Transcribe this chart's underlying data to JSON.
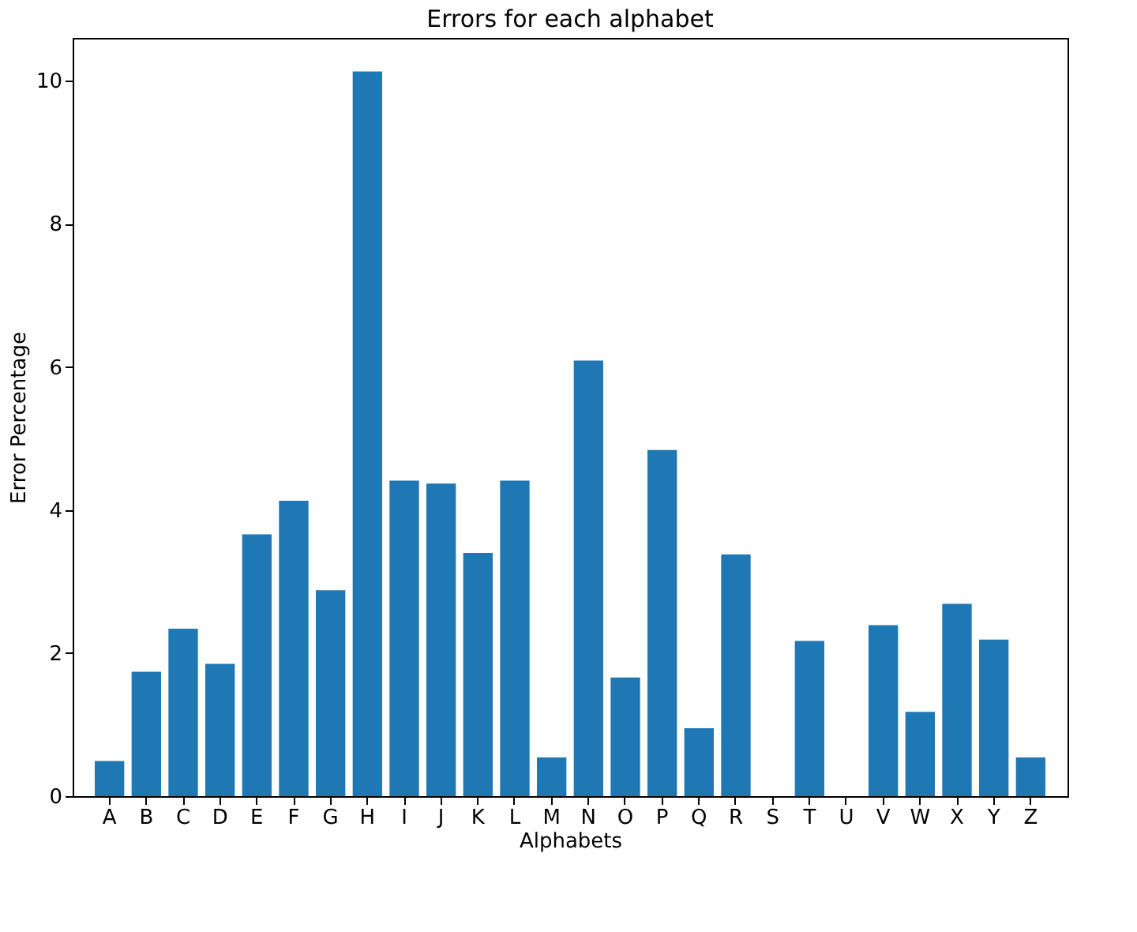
{
  "chart_data": {
    "type": "bar",
    "title": "Errors for each alphabet",
    "xlabel": "Alphabets",
    "ylabel": "Error Percentage",
    "categories": [
      "A",
      "B",
      "C",
      "D",
      "E",
      "F",
      "G",
      "H",
      "I",
      "J",
      "K",
      "L",
      "M",
      "N",
      "O",
      "P",
      "Q",
      "R",
      "S",
      "T",
      "U",
      "V",
      "W",
      "X",
      "Y",
      "Z"
    ],
    "values": [
      0.49,
      1.74,
      2.34,
      1.85,
      3.66,
      4.13,
      2.88,
      10.13,
      4.41,
      4.37,
      3.4,
      4.41,
      0.54,
      6.09,
      1.66,
      4.84,
      0.95,
      3.38,
      0,
      2.17,
      0,
      2.39,
      1.18,
      2.69,
      2.19,
      0.54
    ],
    "color": "#1f77b4",
    "ylim": [
      0,
      10.6
    ],
    "yticks": [
      0,
      2,
      4,
      6,
      8,
      10
    ],
    "grid": false
  }
}
